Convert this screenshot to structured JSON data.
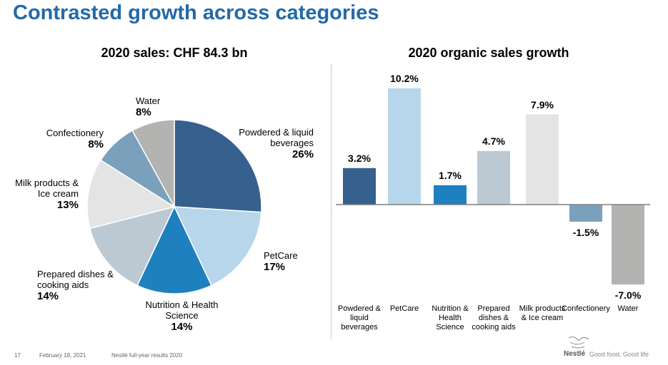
{
  "title": "Contrasted growth across categories",
  "footer": {
    "page": "17",
    "date": "February 18, 2021",
    "doc": "Nestlé full-year results 2020",
    "brand": "Nestlé",
    "tagline": "Good food, Good life"
  },
  "chart_data": [
    {
      "type": "pie",
      "title": "2020 sales: CHF 84.3 bn",
      "slices": [
        {
          "label": "Powdered & liquid beverages",
          "value": 26,
          "display": "26%",
          "color": "#36608e"
        },
        {
          "label": "PetCare",
          "value": 17,
          "display": "17%",
          "color": "#b7d6ec"
        },
        {
          "label": "Nutrition & Health Science",
          "value": 14,
          "display": "14%",
          "color": "#1f80c0"
        },
        {
          "label": "Prepared dishes & cooking aids",
          "value": 14,
          "display": "14%",
          "color": "#bcc9d3"
        },
        {
          "label": "Milk products & Ice cream",
          "value": 13,
          "display": "13%",
          "color": "#e4e4e4"
        },
        {
          "label": "Confectionery",
          "value": 8,
          "display": "8%",
          "color": "#7aa0bc"
        },
        {
          "label": "Water",
          "value": 8,
          "display": "8%",
          "color": "#b3b3b1"
        }
      ]
    },
    {
      "type": "bar",
      "title": "2020 organic sales growth",
      "categories": [
        "Powdered & liquid beverages",
        "PetCare",
        "Nutrition & Health Science",
        "Prepared dishes & cooking aids",
        "Milk products & Ice cream",
        "Confectionery",
        "Water"
      ],
      "values": [
        3.2,
        10.2,
        1.7,
        4.7,
        7.9,
        -1.5,
        -7.0
      ],
      "labels": [
        "3.2%",
        "10.2%",
        "1.7%",
        "4.7%",
        "7.9%",
        "-1.5%",
        "-7.0%"
      ],
      "colors": [
        "#36608e",
        "#b7d6ec",
        "#1f80c0",
        "#bcc9d3",
        "#e4e4e4",
        "#7aa0bc",
        "#b3b3b1"
      ],
      "ylim": [
        -7.0,
        10.2
      ]
    }
  ]
}
